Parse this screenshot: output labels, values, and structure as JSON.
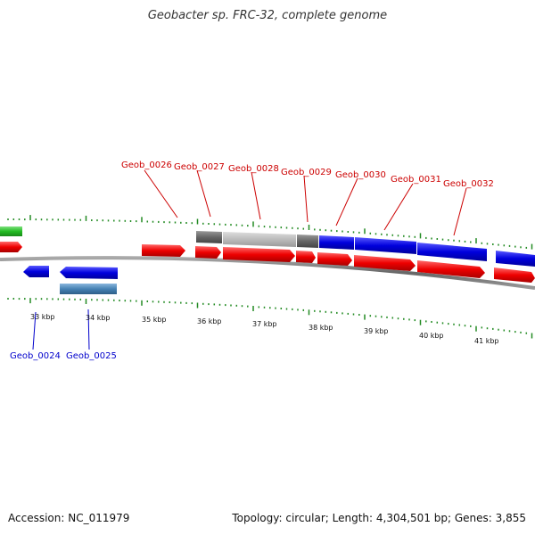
{
  "title": "Geobacter sp. FRC-32, complete genome",
  "footer": {
    "accession": "Accession: NC_011979",
    "topology_prefix": "Topology: circular; Length: 4,304,501 bp; Genes: 3,855",
    "topology": "circular",
    "length": "4,304,501 bp",
    "genes": "3,855"
  },
  "colors": {
    "forward_gene": "#ee0000",
    "reverse_gene": "#0000dd",
    "reverse_other": "#4682b4",
    "highlight": "#0000ee",
    "operon_dark": "#666666",
    "operon_light": "#bbbbbb",
    "rrna": "#22bb22",
    "tick": "#228b22",
    "backbone": "#777777",
    "label_forward": "#cc0000",
    "label_reverse": "#0000cc"
  },
  "tick_labels": [
    "33 kbp",
    "34 kbp",
    "35 kbp",
    "36 kbp",
    "37 kbp",
    "38 kbp",
    "39 kbp",
    "40 kbp",
    "41 kbp"
  ],
  "gene_labels_top": [
    "Geob_0026",
    "Geob_0027",
    "Geob_0028",
    "Geob_0029",
    "Geob_0030",
    "Geob_0031",
    "Geob_0032"
  ],
  "gene_labels_bottom": [
    "Geob_0024",
    "Geob_0025"
  ]
}
